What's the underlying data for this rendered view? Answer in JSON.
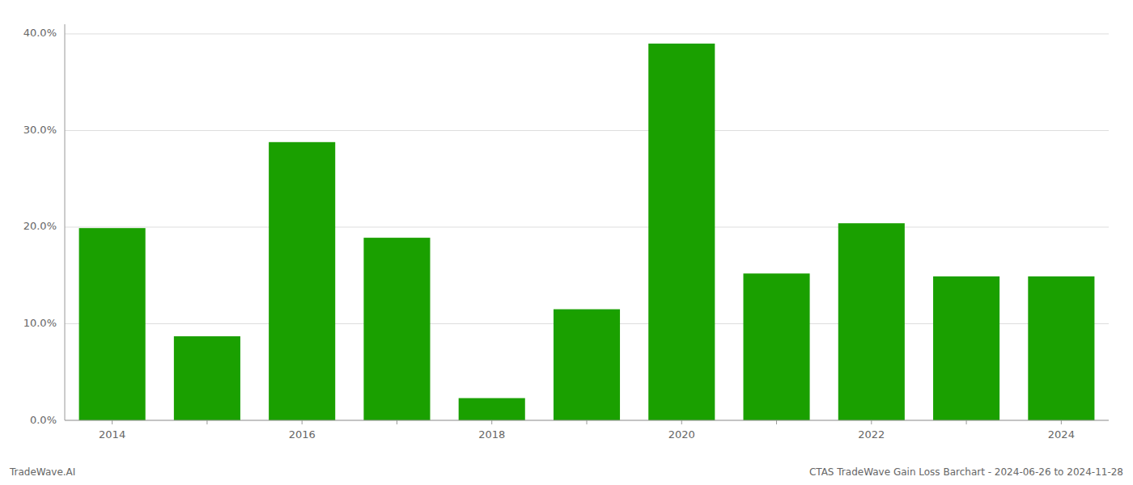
{
  "chart_data": {
    "type": "bar",
    "categories": [
      "2014",
      null,
      "2016",
      null,
      "2018",
      null,
      "2020",
      null,
      "2022",
      null,
      "2024"
    ],
    "values": [
      0.199,
      0.087,
      0.288,
      0.189,
      0.023,
      0.115,
      0.39,
      0.152,
      0.204,
      0.149,
      0.149
    ],
    "color": "#1aa000",
    "ylim": [
      0.0,
      0.41
    ],
    "yticks": [
      {
        "value": 0.0,
        "label": "0.0%"
      },
      {
        "value": 0.1,
        "label": "10.0%"
      },
      {
        "value": 0.2,
        "label": "20.0%"
      },
      {
        "value": 0.3,
        "label": "30.0%"
      },
      {
        "value": 0.4,
        "label": "40.0%"
      }
    ],
    "grid": true,
    "annotations": [
      "TradeWave.AI",
      "CTAS TradeWave Gain Loss Barchart - 2024-06-26 to 2024-11-28"
    ]
  }
}
